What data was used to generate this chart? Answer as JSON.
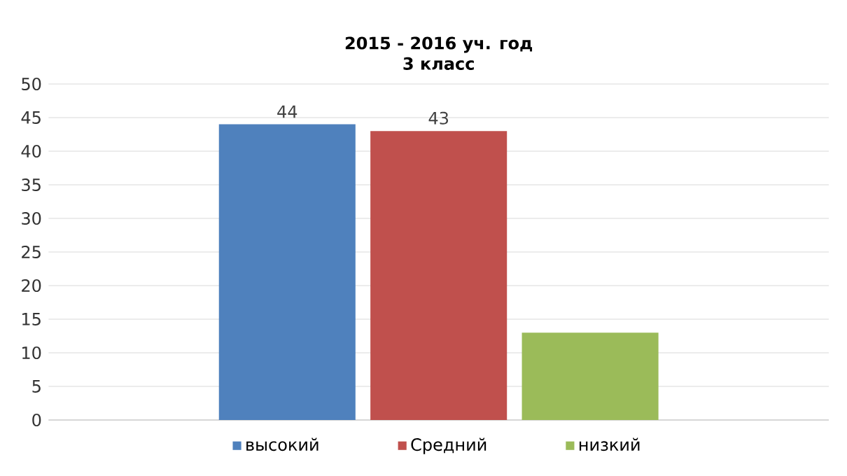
{
  "chart_data": {
    "type": "bar",
    "title": "2015 - 2016 уч. год",
    "subtitle": "3  класс",
    "categories": [
      null
    ],
    "series": [
      {
        "name": "высокий",
        "color": "#4f81bd",
        "values": [
          44
        ],
        "value_labels": [
          "44"
        ]
      },
      {
        "name": "Средний",
        "color": "#c0504d",
        "values": [
          43
        ],
        "value_labels": [
          "43"
        ]
      },
      {
        "name": "низкий",
        "color": "#9bbb59",
        "values": [
          13
        ]
      }
    ],
    "ylim": [
      0,
      50
    ],
    "yticks": [
      0,
      5,
      10,
      15,
      20,
      25,
      30,
      35,
      40,
      45,
      50
    ],
    "grid": "y",
    "legend": "bottom"
  }
}
